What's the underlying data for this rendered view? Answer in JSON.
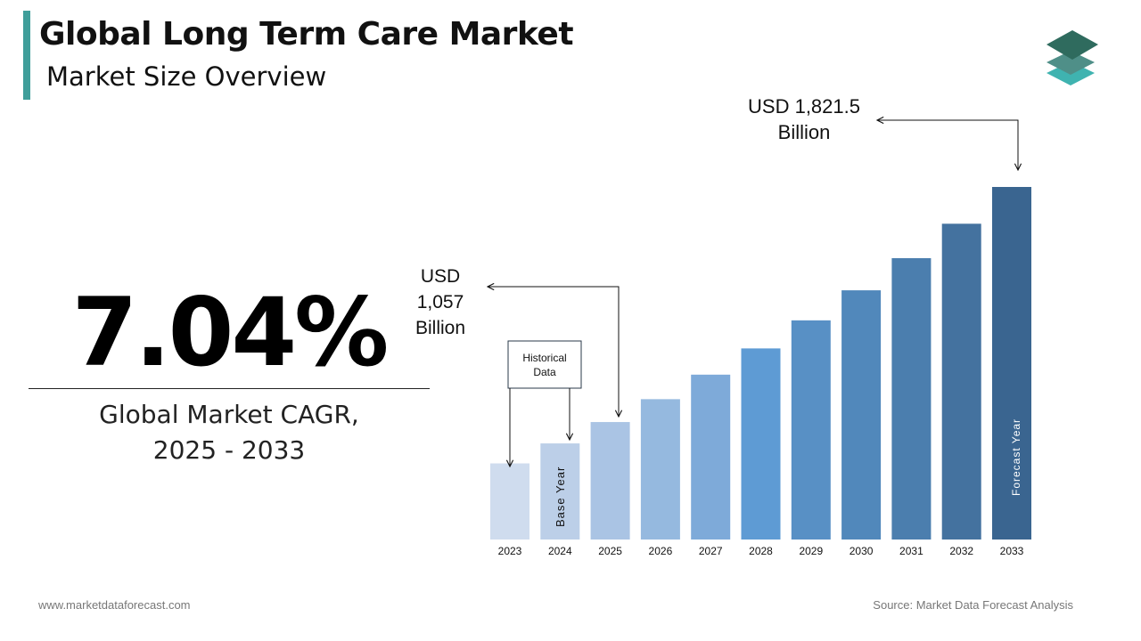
{
  "header": {
    "title": "Global Long Term Care Market",
    "subtitle": "Market Size Overview",
    "accent_color": "#3f9e9a",
    "logo_icon": "stacked-layers-icon"
  },
  "kpi": {
    "value": "7.04%",
    "label_line1": "Global Market CAGR,",
    "label_line2": "2025 - 2033"
  },
  "chart_data": {
    "type": "bar",
    "title": "",
    "xlabel": "",
    "ylabel": "",
    "categories": [
      "2023",
      "2024",
      "2025",
      "2026",
      "2027",
      "2028",
      "2029",
      "2030",
      "2031",
      "2032",
      "2033"
    ],
    "values": [
      922.5,
      987.5,
      1057,
      1131.4,
      1211.1,
      1296.4,
      1387.7,
      1485.4,
      1590.0,
      1701.9,
      1821.5
    ],
    "unit": "USD Billion",
    "colors": [
      "#cfdcee",
      "#bccfe8",
      "#aac4e4",
      "#95b9df",
      "#7eaad9",
      "#5e9bd4",
      "#5890c5",
      "#5188bb",
      "#4b7eae",
      "#44729f",
      "#3a6590"
    ],
    "grid": false,
    "legend": "none",
    "annotations": {
      "start_value": {
        "line1": "USD",
        "line2": "1,057",
        "line3": "Billion",
        "year": "2025"
      },
      "end_value": {
        "line1": "USD 1,821.5",
        "line2": "Billion",
        "year": "2033"
      },
      "historical": {
        "line1": "Historical",
        "line2": "Data"
      },
      "base_year": "Base Year",
      "forecast_year": "Forecast Year"
    }
  },
  "footer": {
    "website": "www.marketdataforecast.com",
    "source": "Source: Market Data Forecast Analysis"
  }
}
